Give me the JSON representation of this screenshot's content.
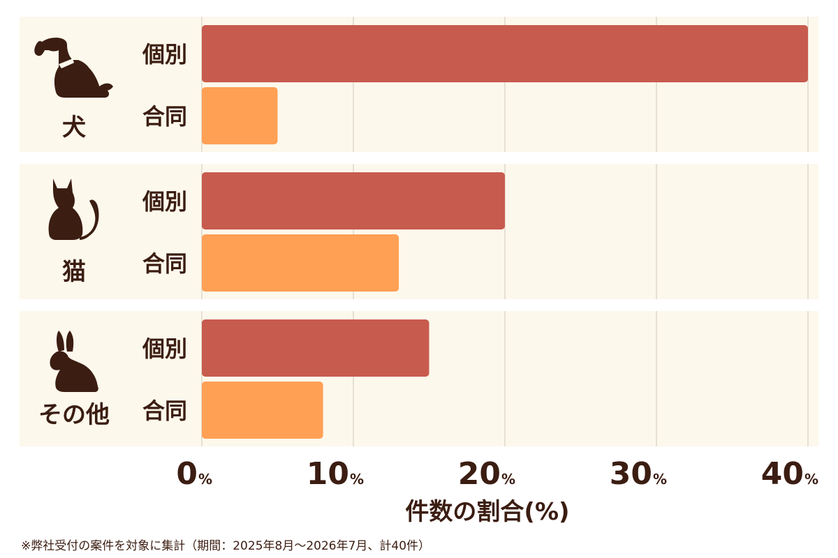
{
  "chart_data": {
    "type": "bar",
    "orientation": "horizontal",
    "groups": [
      {
        "name": "犬",
        "icon": "dog-icon"
      },
      {
        "name": "猫",
        "icon": "cat-icon"
      },
      {
        "name": "その他",
        "icon": "rabbit-icon"
      }
    ],
    "series": [
      {
        "name": "個別",
        "color": "#c75b4e",
        "values": [
          40,
          20,
          15
        ]
      },
      {
        "name": "合同",
        "color": "#ffa055",
        "values": [
          5,
          13,
          8
        ]
      }
    ],
    "xlim": [
      0,
      40
    ],
    "x_ticks": [
      0,
      10,
      20,
      30,
      40
    ],
    "tick_unit": "%",
    "xlabel": "件数の割合(%)",
    "grid": true,
    "panel_color": "#fdf8ec",
    "grid_color": "#cfc7b8",
    "text_color": "#3b1d12"
  },
  "footnote": "※弊社受付の案件を対象に集計（期間：2025年8月～2026年7月、計40件）"
}
